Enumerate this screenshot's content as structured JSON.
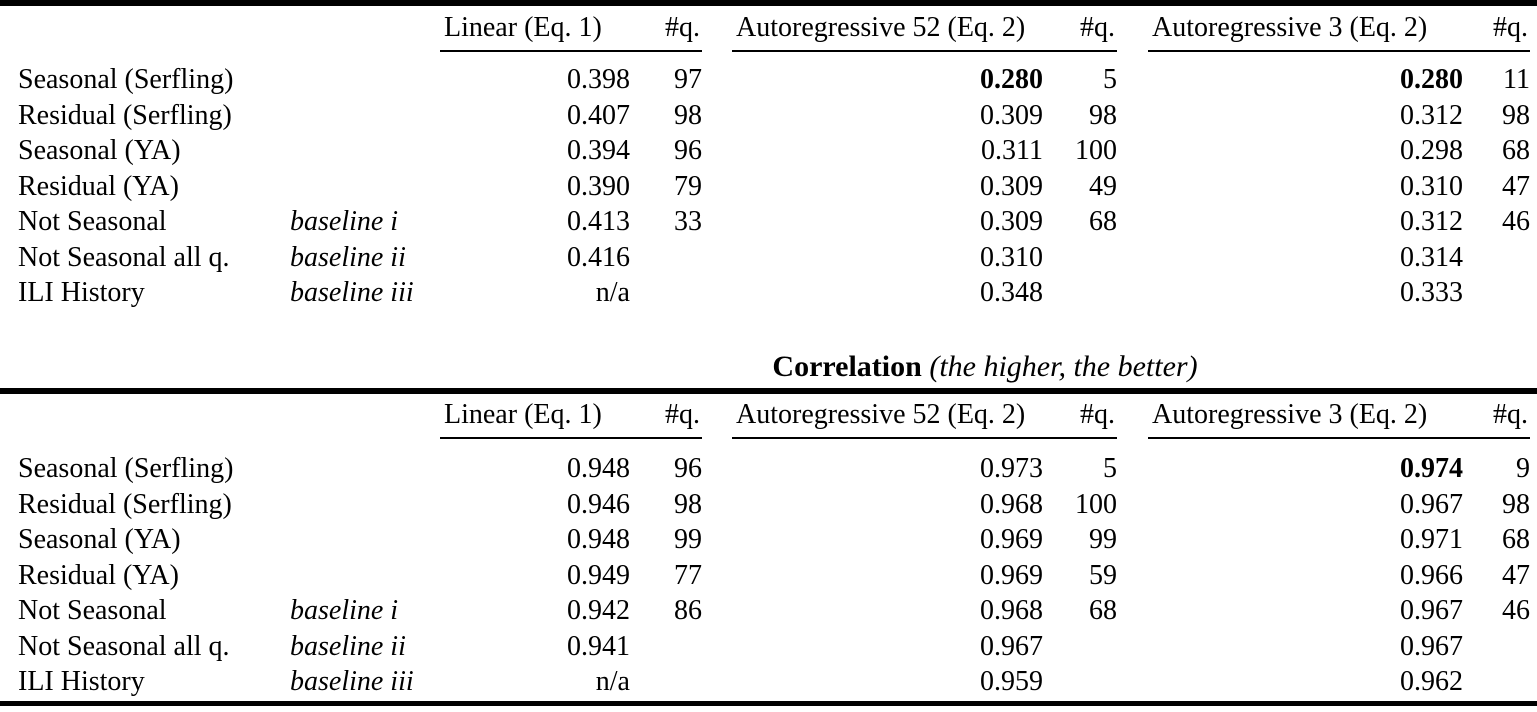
{
  "columns": {
    "group1": "Linear (Eq. 1)",
    "group2": "Autoregressive 52 (Eq. 2)",
    "group3": "Autoregressive 3 (Eq. 2)",
    "q_label": "#q."
  },
  "section_title": {
    "bold": "Correlation",
    "italic": "(the higher, the better)"
  },
  "tables": [
    {
      "name": "error-metric-table",
      "rows": [
        {
          "label": "Seasonal (Serfling)",
          "note": "",
          "g1v": "0.398",
          "g1q": "97",
          "g2v": "0.280",
          "g2q": "5",
          "g3v": "0.280",
          "g3q": "11",
          "bold": [
            "g2v",
            "g3v"
          ]
        },
        {
          "label": "Residual (Serfling)",
          "note": "",
          "g1v": "0.407",
          "g1q": "98",
          "g2v": "0.309",
          "g2q": "98",
          "g3v": "0.312",
          "g3q": "98"
        },
        {
          "label": "Seasonal (YA)",
          "note": "",
          "g1v": "0.394",
          "g1q": "96",
          "g2v": "0.311",
          "g2q": "100",
          "g3v": "0.298",
          "g3q": "68"
        },
        {
          "label": "Residual (YA)",
          "note": "",
          "g1v": "0.390",
          "g1q": "79",
          "g2v": "0.309",
          "g2q": "49",
          "g3v": "0.310",
          "g3q": "47"
        },
        {
          "label": "Not Seasonal",
          "note": "baseline i",
          "g1v": "0.413",
          "g1q": "33",
          "g2v": "0.309",
          "g2q": "68",
          "g3v": "0.312",
          "g3q": "46"
        },
        {
          "label": "Not Seasonal all q.",
          "note": "baseline ii",
          "g1v": "0.416",
          "g1q": "",
          "g2v": "0.310",
          "g2q": "",
          "g3v": "0.314",
          "g3q": ""
        },
        {
          "label": "ILI History",
          "note": "baseline iii",
          "g1v": "n/a",
          "g1q": "",
          "g2v": "0.348",
          "g2q": "",
          "g3v": "0.333",
          "g3q": ""
        }
      ]
    },
    {
      "name": "correlation-table",
      "rows": [
        {
          "label": "Seasonal (Serfling)",
          "note": "",
          "g1v": "0.948",
          "g1q": "96",
          "g2v": "0.973",
          "g2q": "5",
          "g3v": "0.974",
          "g3q": "9",
          "bold": [
            "g3v"
          ]
        },
        {
          "label": "Residual (Serfling)",
          "note": "",
          "g1v": "0.946",
          "g1q": "98",
          "g2v": "0.968",
          "g2q": "100",
          "g3v": "0.967",
          "g3q": "98"
        },
        {
          "label": "Seasonal (YA)",
          "note": "",
          "g1v": "0.948",
          "g1q": "99",
          "g2v": "0.969",
          "g2q": "99",
          "g3v": "0.971",
          "g3q": "68"
        },
        {
          "label": "Residual (YA)",
          "note": "",
          "g1v": "0.949",
          "g1q": "77",
          "g2v": "0.969",
          "g2q": "59",
          "g3v": "0.966",
          "g3q": "47"
        },
        {
          "label": "Not Seasonal",
          "note": "baseline i",
          "g1v": "0.942",
          "g1q": "86",
          "g2v": "0.968",
          "g2q": "68",
          "g3v": "0.967",
          "g3q": "46"
        },
        {
          "label": "Not Seasonal all q.",
          "note": "baseline ii",
          "g1v": "0.941",
          "g1q": "",
          "g2v": "0.967",
          "g2q": "",
          "g3v": "0.967",
          "g3q": ""
        },
        {
          "label": "ILI History",
          "note": "baseline iii",
          "g1v": "n/a",
          "g1q": "",
          "g2v": "0.959",
          "g2q": "",
          "g3v": "0.962",
          "g3q": ""
        }
      ]
    }
  ]
}
